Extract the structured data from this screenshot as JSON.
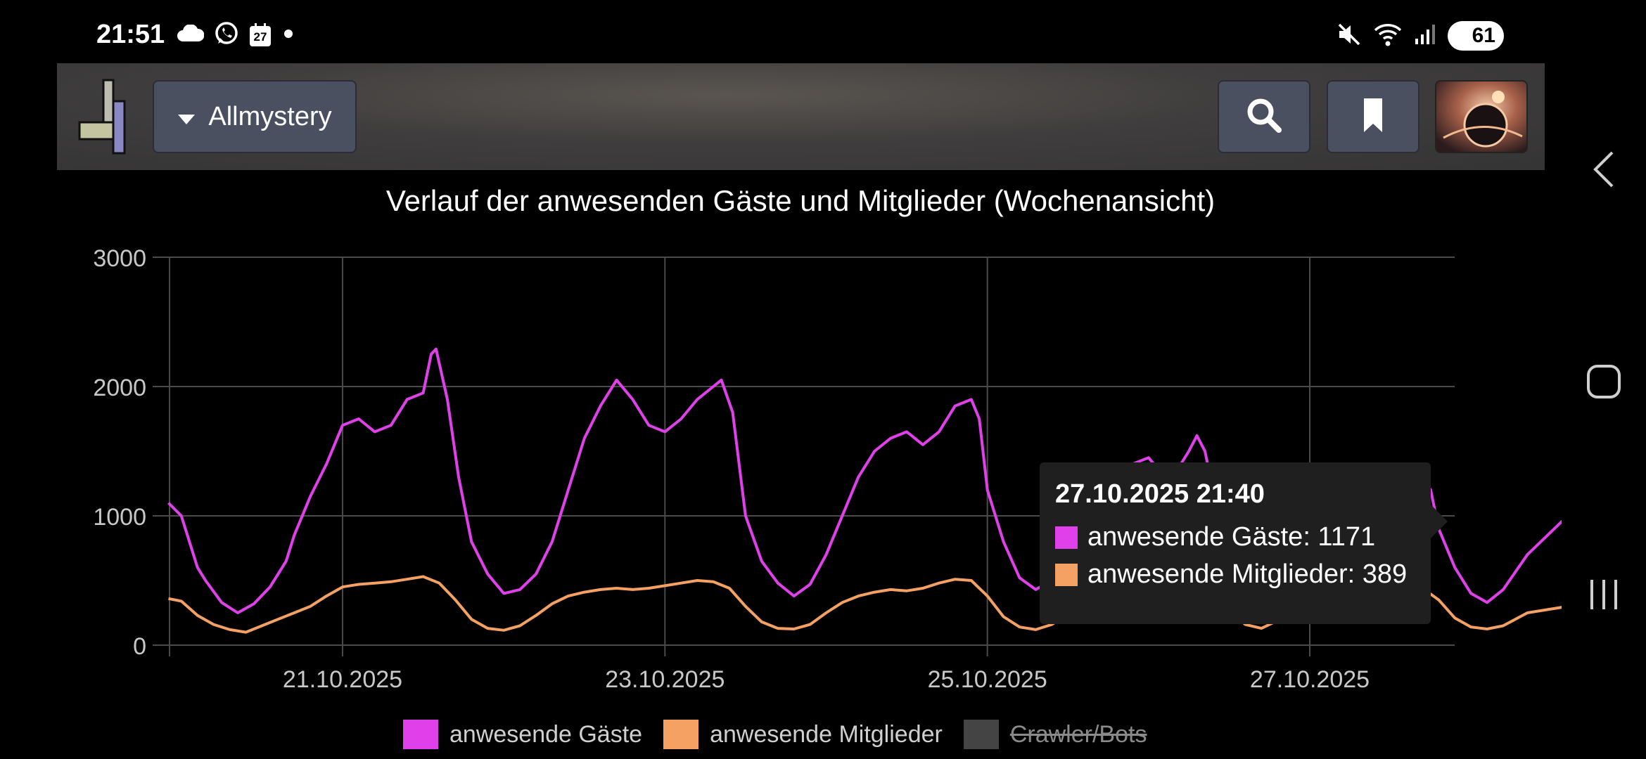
{
  "status_bar": {
    "time": "21:51",
    "calendar_day": "27",
    "battery": "61",
    "icons": [
      "cloud-icon",
      "whatsapp-icon",
      "calendar-icon",
      "dot-icon",
      "mute-icon",
      "wifi-icon",
      "signal-icon",
      "battery-icon"
    ]
  },
  "appbar": {
    "site_label": "Allmystery",
    "icons": [
      "logo-icon",
      "dropdown-caret-icon",
      "search-icon",
      "bookmark-icon",
      "avatar"
    ]
  },
  "navigation": {
    "icons": [
      "back-icon",
      "home-icon",
      "recents-icon"
    ]
  },
  "colors": {
    "guests": "#e040ea",
    "members": "#f4a163",
    "crawlers": "#444444",
    "grid": "#4a4a4a",
    "axis_text": "#c8c8c8"
  },
  "chart_data": {
    "type": "line",
    "title": "Verlauf der anwesenden Gäste und Mitglieder (Wochenansicht)",
    "x_ticks": [
      "21.10.2025",
      "23.10.2025",
      "25.10.2025",
      "27.10.2025"
    ],
    "y_ticks": [
      "0",
      "1000",
      "2000",
      "3000"
    ],
    "ylim": [
      0,
      3000
    ],
    "xlim_days": [
      -1.08,
      7.03
    ],
    "grid": true,
    "legend_position": "bottom",
    "series": [
      {
        "name": "anwesende Gäste",
        "points": [
          [
            -1.08,
            1100
          ],
          [
            -1.0,
            1000
          ],
          [
            -0.95,
            800
          ],
          [
            -0.9,
            600
          ],
          [
            -0.85,
            500
          ],
          [
            -0.75,
            330
          ],
          [
            -0.65,
            250
          ],
          [
            -0.55,
            320
          ],
          [
            -0.45,
            450
          ],
          [
            -0.35,
            650
          ],
          [
            -0.3,
            850
          ],
          [
            -0.2,
            1150
          ],
          [
            -0.1,
            1400
          ],
          [
            0.0,
            1700
          ],
          [
            0.1,
            1750
          ],
          [
            0.2,
            1650
          ],
          [
            0.3,
            1700
          ],
          [
            0.4,
            1900
          ],
          [
            0.5,
            1950
          ],
          [
            0.55,
            2250
          ],
          [
            0.58,
            2290
          ],
          [
            0.65,
            1900
          ],
          [
            0.72,
            1300
          ],
          [
            0.8,
            800
          ],
          [
            0.9,
            550
          ],
          [
            1.0,
            400
          ],
          [
            1.1,
            430
          ],
          [
            1.2,
            550
          ],
          [
            1.3,
            800
          ],
          [
            1.4,
            1200
          ],
          [
            1.5,
            1600
          ],
          [
            1.6,
            1850
          ],
          [
            1.7,
            2050
          ],
          [
            1.8,
            1900
          ],
          [
            1.9,
            1700
          ],
          [
            2.0,
            1650
          ],
          [
            2.1,
            1750
          ],
          [
            2.2,
            1900
          ],
          [
            2.3,
            2000
          ],
          [
            2.35,
            2050
          ],
          [
            2.42,
            1800
          ],
          [
            2.5,
            1000
          ],
          [
            2.6,
            650
          ],
          [
            2.7,
            480
          ],
          [
            2.8,
            380
          ],
          [
            2.9,
            470
          ],
          [
            3.0,
            700
          ],
          [
            3.1,
            1000
          ],
          [
            3.2,
            1300
          ],
          [
            3.3,
            1500
          ],
          [
            3.4,
            1600
          ],
          [
            3.5,
            1650
          ],
          [
            3.6,
            1550
          ],
          [
            3.7,
            1650
          ],
          [
            3.8,
            1850
          ],
          [
            3.9,
            1900
          ],
          [
            3.95,
            1750
          ],
          [
            4.0,
            1200
          ],
          [
            4.1,
            800
          ],
          [
            4.2,
            520
          ],
          [
            4.3,
            430
          ],
          [
            4.4,
            500
          ],
          [
            4.5,
            750
          ],
          [
            4.6,
            1000
          ],
          [
            4.7,
            1200
          ],
          [
            4.8,
            1300
          ],
          [
            4.9,
            1400
          ],
          [
            5.0,
            1450
          ],
          [
            5.1,
            1300
          ],
          [
            5.2,
            1400
          ],
          [
            5.25,
            1500
          ],
          [
            5.3,
            1620
          ],
          [
            5.35,
            1500
          ],
          [
            5.4,
            1200
          ],
          [
            5.5,
            800
          ],
          [
            5.6,
            450
          ],
          [
            5.7,
            380
          ],
          [
            5.8,
            600
          ],
          [
            5.9,
            850
          ],
          [
            6.0,
            1000
          ],
          [
            6.1,
            1150
          ],
          [
            6.2,
            1200
          ],
          [
            6.3,
            1150
          ],
          [
            6.4,
            1100
          ],
          [
            6.5,
            1050
          ],
          [
            6.6,
            1150
          ],
          [
            6.7,
            1300
          ],
          [
            6.75,
            1200
          ],
          [
            6.8,
            900
          ],
          [
            6.9,
            600
          ],
          [
            7.0,
            400
          ],
          [
            7.1,
            330
          ],
          [
            7.2,
            430
          ],
          [
            7.35,
            700
          ],
          [
            7.6,
            1000
          ],
          [
            7.8,
            1050
          ],
          [
            7.9,
            1000
          ],
          [
            7.95,
            1100
          ],
          [
            8.0,
            1171
          ]
        ]
      },
      {
        "name": "anwesende Mitglieder",
        "points": [
          [
            -1.08,
            360
          ],
          [
            -1.0,
            340
          ],
          [
            -0.9,
            230
          ],
          [
            -0.8,
            160
          ],
          [
            -0.7,
            120
          ],
          [
            -0.6,
            100
          ],
          [
            -0.5,
            150
          ],
          [
            -0.4,
            200
          ],
          [
            -0.3,
            250
          ],
          [
            -0.2,
            300
          ],
          [
            -0.1,
            380
          ],
          [
            0.0,
            450
          ],
          [
            0.1,
            470
          ],
          [
            0.2,
            480
          ],
          [
            0.3,
            490
          ],
          [
            0.4,
            510
          ],
          [
            0.5,
            530
          ],
          [
            0.6,
            480
          ],
          [
            0.7,
            350
          ],
          [
            0.8,
            200
          ],
          [
            0.9,
            130
          ],
          [
            1.0,
            115
          ],
          [
            1.1,
            150
          ],
          [
            1.2,
            230
          ],
          [
            1.3,
            320
          ],
          [
            1.4,
            380
          ],
          [
            1.5,
            410
          ],
          [
            1.6,
            430
          ],
          [
            1.7,
            440
          ],
          [
            1.8,
            430
          ],
          [
            1.9,
            440
          ],
          [
            2.0,
            460
          ],
          [
            2.1,
            480
          ],
          [
            2.2,
            500
          ],
          [
            2.3,
            490
          ],
          [
            2.4,
            440
          ],
          [
            2.5,
            300
          ],
          [
            2.6,
            180
          ],
          [
            2.7,
            130
          ],
          [
            2.8,
            125
          ],
          [
            2.9,
            160
          ],
          [
            3.0,
            250
          ],
          [
            3.1,
            330
          ],
          [
            3.2,
            380
          ],
          [
            3.3,
            410
          ],
          [
            3.4,
            430
          ],
          [
            3.5,
            420
          ],
          [
            3.6,
            440
          ],
          [
            3.7,
            480
          ],
          [
            3.8,
            510
          ],
          [
            3.9,
            500
          ],
          [
            4.0,
            380
          ],
          [
            4.1,
            220
          ],
          [
            4.2,
            140
          ],
          [
            4.3,
            120
          ],
          [
            4.4,
            160
          ],
          [
            4.5,
            240
          ],
          [
            4.6,
            320
          ],
          [
            4.7,
            360
          ],
          [
            4.8,
            380
          ],
          [
            4.9,
            400
          ],
          [
            5.0,
            390
          ],
          [
            5.1,
            400
          ],
          [
            5.2,
            450
          ],
          [
            5.3,
            490
          ],
          [
            5.35,
            500
          ],
          [
            5.4,
            430
          ],
          [
            5.5,
            280
          ],
          [
            5.6,
            160
          ],
          [
            5.7,
            130
          ],
          [
            5.8,
            190
          ],
          [
            5.9,
            280
          ],
          [
            6.0,
            340
          ],
          [
            6.1,
            370
          ],
          [
            6.2,
            380
          ],
          [
            6.3,
            370
          ],
          [
            6.4,
            380
          ],
          [
            6.5,
            370
          ],
          [
            6.6,
            400
          ],
          [
            6.7,
            440
          ],
          [
            6.8,
            350
          ],
          [
            6.9,
            210
          ],
          [
            7.0,
            140
          ],
          [
            7.1,
            125
          ],
          [
            7.2,
            150
          ],
          [
            7.35,
            250
          ],
          [
            7.6,
            300
          ],
          [
            7.8,
            330
          ],
          [
            7.9,
            360
          ],
          [
            8.0,
            389
          ]
        ]
      },
      {
        "name": "Crawler/Bots",
        "hidden": true,
        "points": []
      }
    ],
    "tooltip": {
      "title": "27.10.2025 21:40",
      "rows": [
        {
          "label": "anwesende Gäste: 1171"
        },
        {
          "label": "anwesende Mitglieder: 389"
        }
      ]
    }
  }
}
